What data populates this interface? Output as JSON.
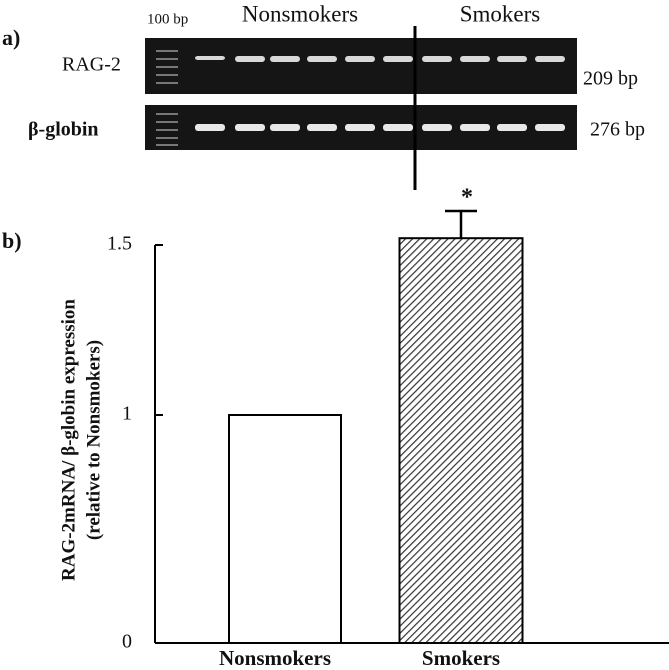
{
  "gel": {
    "panel_label": "a)",
    "ladder": "100 bp",
    "group1": "Nonsmokers",
    "group2": "Smokers",
    "row1_label": "RAG-2",
    "row1_size": "209 bp",
    "row2_label": "β-globin",
    "row2_size": "276 bp"
  },
  "chart_data": {
    "type": "bar",
    "panel_label": "b)",
    "y_label": [
      "RAG-2mRNA/ β-globin expression",
      "(relative to Nonsmokers)"
    ],
    "categories": [
      "Nonsmokers",
      "Smokers"
    ],
    "values": [
      1.0,
      1.52
    ],
    "errors": [
      null,
      0.08
    ],
    "annotation": "*",
    "colors": [
      "#ffffff",
      "hatch"
    ],
    "ylim": [
      0,
      1.5
    ],
    "yticks": [
      0,
      1,
      1.5
    ]
  }
}
